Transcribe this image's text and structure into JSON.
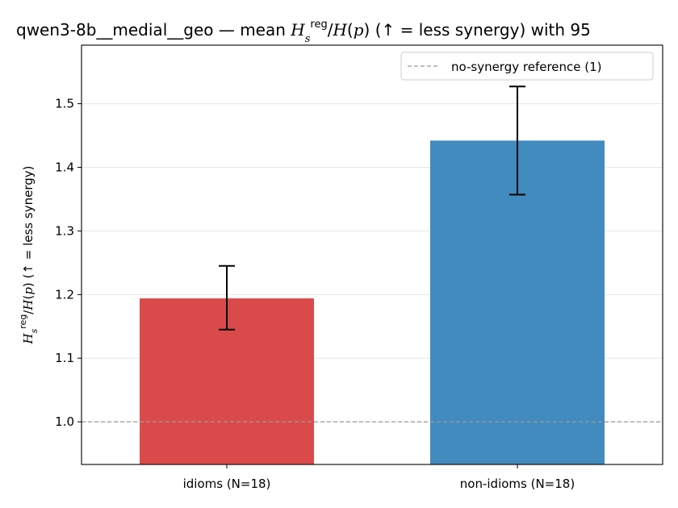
{
  "chart_data": {
    "type": "bar",
    "title_prefix": "qwen3-8b__medial__geo — mean ",
    "title_suffix": "  (↑ = less synergy) with 95",
    "ylabel_suffix": "  (↑ = less synergy)",
    "categories": [
      "idioms (N=18)",
      "non-idioms (N=18)"
    ],
    "values": [
      1.194,
      1.442
    ],
    "errors": [
      {
        "low": 1.145,
        "high": 1.245
      },
      {
        "low": 1.357,
        "high": 1.527
      }
    ],
    "colors": [
      "#db4a4a",
      "#428bbf"
    ],
    "ylim": [
      0.933,
      1.592
    ],
    "yticks": [
      1.0,
      1.1,
      1.2,
      1.3,
      1.4,
      1.5
    ],
    "ytick_labels": [
      "1.0",
      "1.1",
      "1.2",
      "1.3",
      "1.4",
      "1.5"
    ],
    "grid": "y",
    "reference_line": {
      "value": 1.0,
      "label": "no-synergy reference (1)",
      "color": "#999999"
    },
    "legend": {
      "position": "top-right"
    }
  }
}
